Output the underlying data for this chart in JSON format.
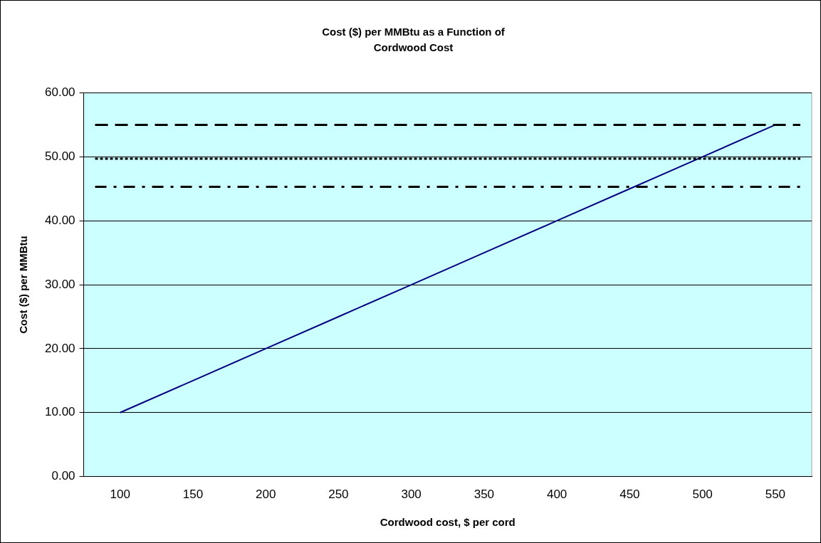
{
  "chart_data": {
    "type": "line",
    "title": "Cost ($) per MMBtu as a Function of\nCordwood Cost",
    "xlabel": "Cordwood cost, $ per cord",
    "ylabel": "Cost ($) per MMBtu",
    "categories": [
      "100",
      "150",
      "200",
      "250",
      "300",
      "350",
      "400",
      "450",
      "500",
      "550"
    ],
    "series": [
      {
        "color": "#000080",
        "values": [
          10,
          15,
          20,
          25,
          30,
          35,
          40,
          45,
          50,
          55
        ]
      }
    ],
    "ylim": [
      0,
      60
    ],
    "yticks": [
      {
        "value": 0,
        "label": "0.00"
      },
      {
        "value": 10,
        "label": "10.00"
      },
      {
        "value": 20,
        "label": "20.00"
      },
      {
        "value": 30,
        "label": "30.00"
      },
      {
        "value": 40,
        "label": "40.00"
      },
      {
        "value": 50,
        "label": "50.00"
      },
      {
        "value": 60,
        "label": "60.00"
      }
    ],
    "grid": "y",
    "legend": false,
    "marker": "none",
    "ref_lines": [
      {
        "axis": "y",
        "value": 55,
        "color": "#000000",
        "line_style": "dashed"
      },
      {
        "axis": "y",
        "value": 49.7,
        "color": "#000000",
        "line_style": "dotted"
      },
      {
        "axis": "y",
        "value": 45.3,
        "color": "#000000",
        "line_style": "dashdot"
      }
    ]
  }
}
